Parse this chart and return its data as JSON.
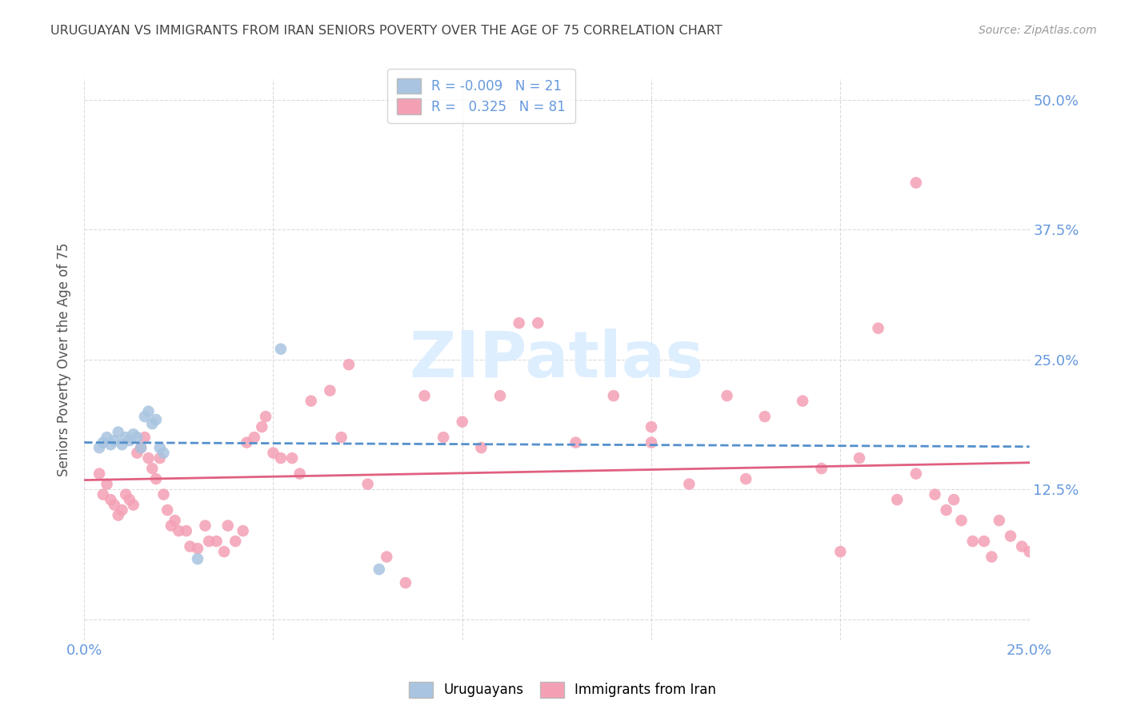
{
  "title": "URUGUAYAN VS IMMIGRANTS FROM IRAN SENIORS POVERTY OVER THE AGE OF 75 CORRELATION CHART",
  "source": "Source: ZipAtlas.com",
  "ylabel": "Seniors Poverty Over the Age of 75",
  "xlim": [
    0.0,
    0.25
  ],
  "ylim": [
    -0.02,
    0.52
  ],
  "yticks": [
    0.0,
    0.125,
    0.25,
    0.375,
    0.5
  ],
  "ytick_labels": [
    "",
    "12.5%",
    "25.0%",
    "37.5%",
    "50.0%"
  ],
  "xticks": [
    0.0,
    0.05,
    0.1,
    0.15,
    0.2,
    0.25
  ],
  "xtick_labels": [
    "0.0%",
    "",
    "",
    "",
    "",
    "25.0%"
  ],
  "uruguayan_R": -0.009,
  "uruguayan_N": 21,
  "iran_R": 0.325,
  "iran_N": 81,
  "uruguayan_color": "#a8c4e0",
  "iran_color": "#f4a0b4",
  "line_uruguayan_color": "#5590cc",
  "line_iran_color": "#e06080",
  "background_color": "#ffffff",
  "grid_color": "#cccccc",
  "tick_label_color": "#6699dd",
  "title_color": "#444444",
  "watermark_color": "#ddeeff",
  "uruguayan_x": [
    0.004,
    0.005,
    0.006,
    0.007,
    0.008,
    0.009,
    0.01,
    0.011,
    0.012,
    0.013,
    0.014,
    0.015,
    0.016,
    0.017,
    0.018,
    0.019,
    0.02,
    0.021,
    0.03,
    0.052,
    0.078
  ],
  "uruguayan_y": [
    0.165,
    0.17,
    0.175,
    0.168,
    0.172,
    0.18,
    0.168,
    0.175,
    0.172,
    0.178,
    0.175,
    0.165,
    0.195,
    0.2,
    0.188,
    0.192,
    0.165,
    0.16,
    0.058,
    0.26,
    0.048
  ],
  "iran_x": [
    0.004,
    0.005,
    0.006,
    0.007,
    0.008,
    0.009,
    0.01,
    0.011,
    0.012,
    0.013,
    0.014,
    0.015,
    0.016,
    0.017,
    0.018,
    0.019,
    0.02,
    0.021,
    0.022,
    0.023,
    0.024,
    0.025,
    0.027,
    0.028,
    0.03,
    0.032,
    0.033,
    0.035,
    0.037,
    0.038,
    0.04,
    0.042,
    0.043,
    0.045,
    0.047,
    0.048,
    0.05,
    0.052,
    0.055,
    0.057,
    0.06,
    0.065,
    0.068,
    0.07,
    0.075,
    0.08,
    0.085,
    0.09,
    0.095,
    0.1,
    0.105,
    0.11,
    0.115,
    0.12,
    0.13,
    0.14,
    0.15,
    0.16,
    0.17,
    0.18,
    0.19,
    0.2,
    0.21,
    0.22,
    0.23,
    0.235,
    0.15,
    0.175,
    0.195,
    0.205,
    0.215,
    0.22,
    0.225,
    0.228,
    0.232,
    0.238,
    0.24,
    0.242,
    0.245,
    0.248,
    0.25
  ],
  "iran_y": [
    0.14,
    0.12,
    0.13,
    0.115,
    0.11,
    0.1,
    0.105,
    0.12,
    0.115,
    0.11,
    0.16,
    0.165,
    0.175,
    0.155,
    0.145,
    0.135,
    0.155,
    0.12,
    0.105,
    0.09,
    0.095,
    0.085,
    0.085,
    0.07,
    0.068,
    0.09,
    0.075,
    0.075,
    0.065,
    0.09,
    0.075,
    0.085,
    0.17,
    0.175,
    0.185,
    0.195,
    0.16,
    0.155,
    0.155,
    0.14,
    0.21,
    0.22,
    0.175,
    0.245,
    0.13,
    0.06,
    0.035,
    0.215,
    0.175,
    0.19,
    0.165,
    0.215,
    0.285,
    0.285,
    0.17,
    0.215,
    0.17,
    0.13,
    0.215,
    0.195,
    0.21,
    0.065,
    0.28,
    0.42,
    0.115,
    0.075,
    0.185,
    0.135,
    0.145,
    0.155,
    0.115,
    0.14,
    0.12,
    0.105,
    0.095,
    0.075,
    0.06,
    0.095,
    0.08,
    0.07,
    0.065
  ]
}
